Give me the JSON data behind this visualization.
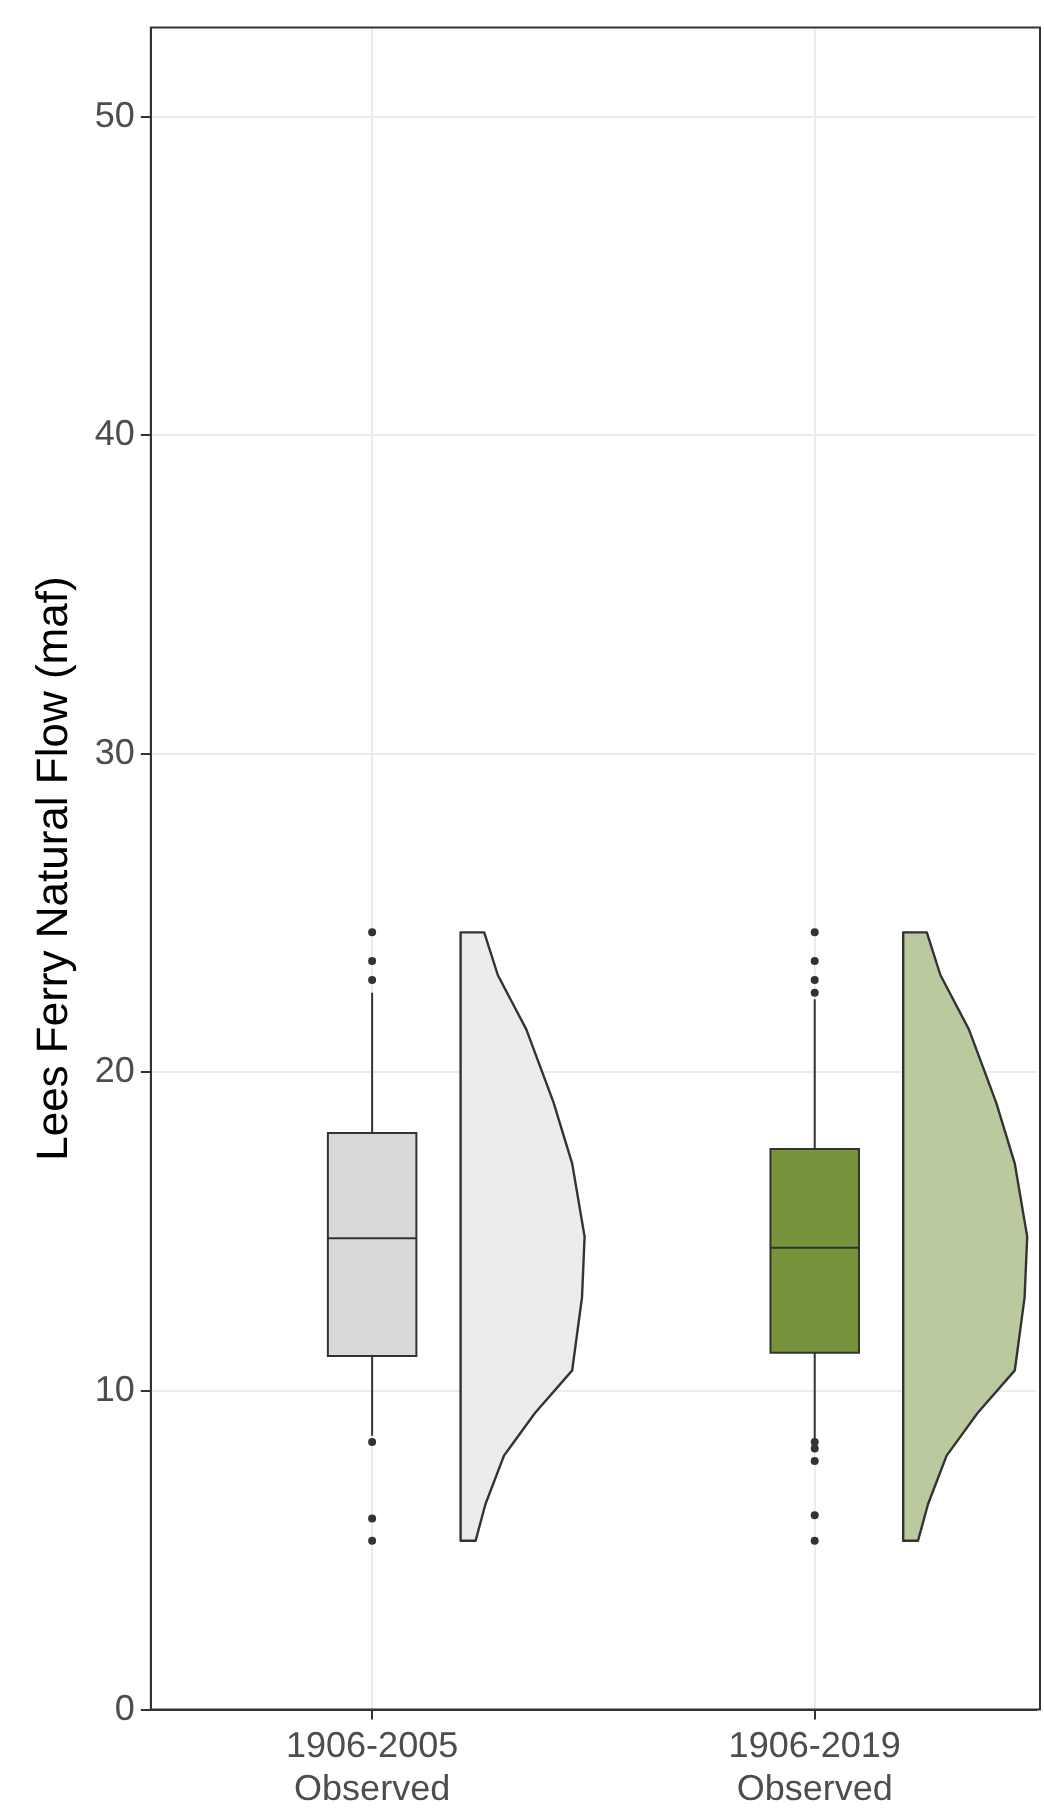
{
  "chart_data": {
    "type": "box",
    "ylabel": "Lees Ferry Natural Flow (maf)",
    "categories": [
      "1906-2005\nObserved",
      "1906-2019\nObserved"
    ],
    "colors": [
      "#d9d9d9",
      "#77933c"
    ],
    "boxes": [
      {
        "low": 8.6,
        "q1": 11.1,
        "median": 14.8,
        "q3": 18.1,
        "high": 22.5,
        "outliers": [
          24.4,
          23.5,
          22.9,
          8.4,
          6.0,
          5.3
        ]
      },
      {
        "low": 8.5,
        "q1": 11.2,
        "median": 14.5,
        "q3": 17.6,
        "high": 22.3,
        "outliers": [
          24.4,
          23.5,
          22.9,
          22.5,
          8.4,
          8.2,
          7.8,
          6.1,
          5.3
        ]
      }
    ],
    "ylim": [
      0,
      52.8
    ],
    "yticks": [
      0,
      10,
      20,
      30,
      40,
      50
    ],
    "grid": true
  }
}
